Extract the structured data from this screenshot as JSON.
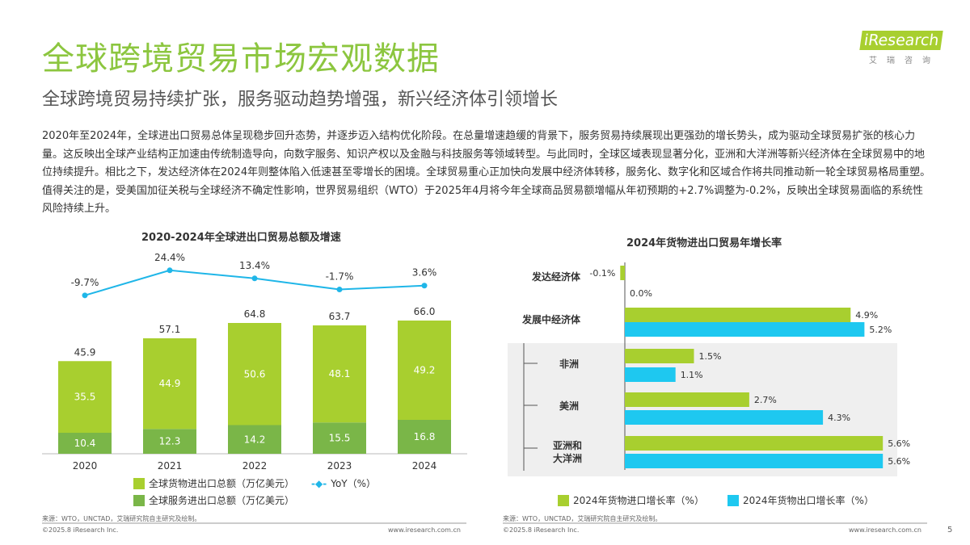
{
  "header": {
    "title": "全球跨境贸易市场宏观数据",
    "subtitle": "全球跨境贸易持续扩张，服务驱动趋势增强，新兴经济体引领增长",
    "logo_text": "iResearch",
    "logo_cn": "艾瑞咨询"
  },
  "body_text": "2020年至2024年，全球进出口贸易总体呈现稳步回升态势，并逐步迈入结构优化阶段。在总量增速趋缓的背景下，服务贸易持续展现出更强劲的增长势头，成为驱动全球贸易扩张的核心力量。这反映出全球产业结构正加速由传统制造导向，向数字服务、知识产权以及金融与科技服务等领域转型。与此同时，全球区域表现显著分化，亚洲和大洋洲等新兴经济体在全球贸易中的地位持续提升。相比之下，发达经济体在2024年则整体陷入低速甚至零增长的困境。全球贸易重心正加快向发展中经济体转移，服务化、数字化和区域合作将共同推动新一轮全球贸易格局重塑。值得关注的是，受美国加征关税与全球经济不确定性影响，世界贸易组织（WTO）于2025年4月将今年全球商品贸易额增幅从年初预期的+2.7%调整为-0.2%，反映出全球贸易面临的系统性风险持续上升。",
  "colors": {
    "accent": "#8cc63f",
    "goods": "#a8cf2f",
    "services": "#7ab648",
    "line": "#1fb6e8",
    "import": "#a8cf2f",
    "export": "#1ec8f0"
  },
  "chart_data": [
    {
      "type": "bar",
      "title": "2020-2024年全球进出口贸易总额及增速",
      "categories": [
        "2020",
        "2021",
        "2022",
        "2023",
        "2024"
      ],
      "series": [
        {
          "name": "全球服务进出口总额（万亿美元）",
          "values": [
            10.4,
            12.3,
            14.2,
            15.5,
            16.8
          ]
        },
        {
          "name": "全球货物进出口总额（万亿美元）",
          "values": [
            35.5,
            44.9,
            50.6,
            48.1,
            49.2
          ]
        },
        {
          "name": "YoY（%）",
          "type": "line",
          "values": [
            -9.7,
            24.4,
            13.4,
            -1.7,
            3.6
          ]
        }
      ],
      "totals": [
        "45.9",
        "57.1",
        "64.8",
        "63.7",
        "66.0"
      ],
      "yoy_labels": [
        "-9.7%",
        "24.4%",
        "13.4%",
        "-1.7%",
        "3.6%"
      ],
      "legend": "bottom"
    },
    {
      "type": "bar",
      "orientation": "horizontal",
      "title": "2024年货物进出口贸易年增长率",
      "categories": [
        "发达经济体",
        "发展中经济体",
        "非洲",
        "美洲",
        "亚洲和大洋洲"
      ],
      "series": [
        {
          "name": "2024年货物进口增长率（%）",
          "values": [
            -0.1,
            4.9,
            1.5,
            2.7,
            5.6
          ]
        },
        {
          "name": "2024年货物出口增长率（%）",
          "values": [
            0.0,
            5.2,
            1.1,
            4.3,
            5.6
          ]
        }
      ],
      "labels": [
        [
          "-0.1%",
          "4.9%",
          "1.5%",
          "2.7%",
          "5.6%"
        ],
        [
          "0.0%",
          "5.2%",
          "1.1%",
          "4.3%",
          "5.6%"
        ]
      ],
      "legend": "bottom"
    }
  ],
  "footer": {
    "source": "来源：WTO，UNCTAD，艾瑞研究院自主研究及绘制。",
    "copyright": "©2025.8 iResearch Inc.",
    "url": "www.iresearch.com.cn",
    "page": "5"
  }
}
